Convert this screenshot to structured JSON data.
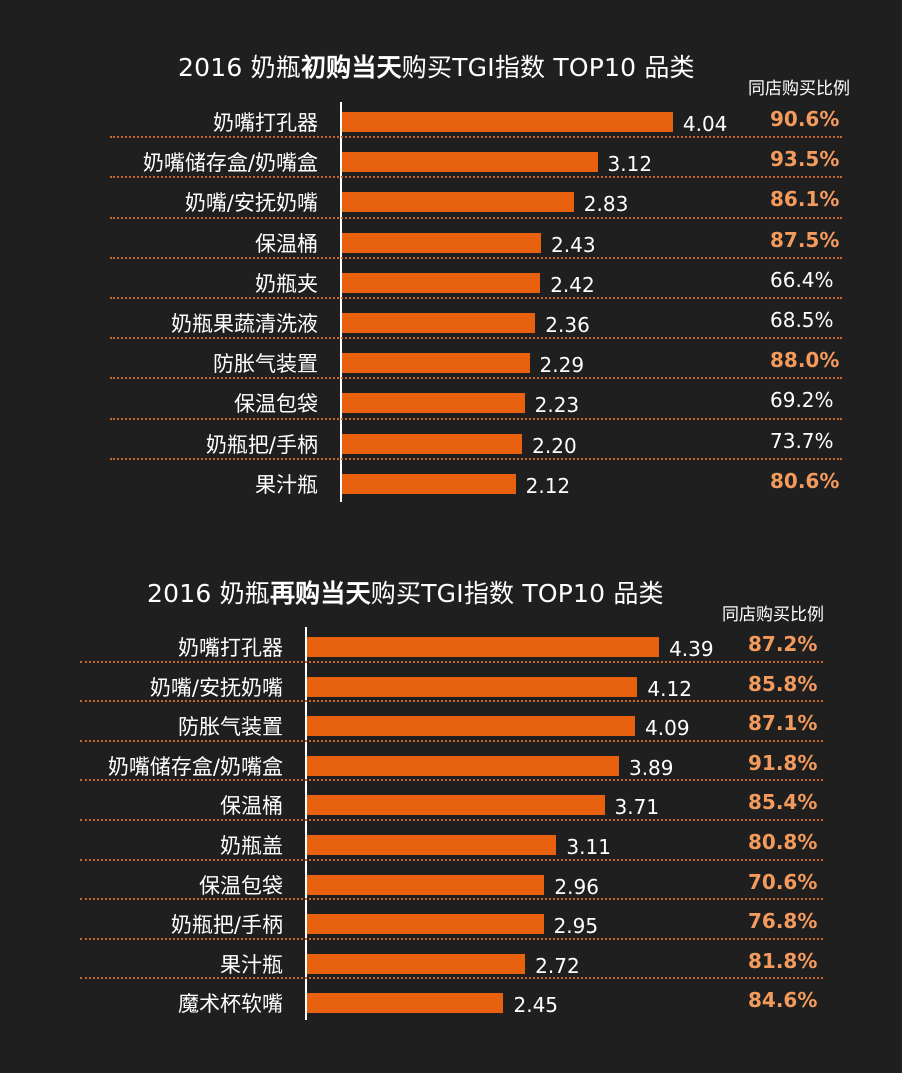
{
  "chart_data": [
    {
      "type": "bar",
      "title_parts": [
        "2016 奶瓶",
        "初购当天",
        "购买TGI指数 TOP10 品类"
      ],
      "share_header": "同店购买比例",
      "categories": [
        "奶嘴打孔器",
        "奶嘴储存盒/奶嘴盒",
        "奶嘴/安抚奶嘴",
        "保温桶",
        "奶瓶夹",
        "奶瓶果蔬清洗液",
        "防胀气装置",
        "保温包袋",
        "奶瓶把/手柄",
        "果汁瓶"
      ],
      "values": [
        4.04,
        3.12,
        2.83,
        2.43,
        2.42,
        2.36,
        2.29,
        2.23,
        2.2,
        2.12
      ],
      "value_labels": [
        "4.04",
        "3.12",
        "2.83",
        "2.43",
        "2.42",
        "2.36",
        "2.29",
        "2.23",
        "2.20",
        "2.12"
      ],
      "shares": [
        "90.6%",
        "93.5%",
        "86.1%",
        "87.5%",
        "66.4%",
        "68.5%",
        "88.0%",
        "69.2%",
        "73.7%",
        "80.6%"
      ],
      "share_highlight": [
        true,
        true,
        true,
        true,
        false,
        false,
        true,
        false,
        false,
        true
      ]
    },
    {
      "type": "bar",
      "title_parts": [
        "2016 奶瓶",
        "再购当天",
        "购买TGI指数 TOP10 品类"
      ],
      "share_header": "同店购买比例",
      "categories": [
        "奶嘴打孔器",
        "奶嘴/安抚奶嘴",
        "防胀气装置",
        "奶嘴储存盒/奶嘴盒",
        "保温桶",
        "奶瓶盖",
        "保温包袋",
        "奶瓶把/手柄",
        "果汁瓶",
        "魔术杯软嘴"
      ],
      "values": [
        4.39,
        4.12,
        4.09,
        3.89,
        3.71,
        3.11,
        2.96,
        2.95,
        2.72,
        2.45
      ],
      "value_labels": [
        "4.39",
        "4.12",
        "4.09",
        "3.89",
        "3.71",
        "3.11",
        "2.96",
        "2.95",
        "2.72",
        "2.45"
      ],
      "shares": [
        "87.2%",
        "85.8%",
        "87.1%",
        "91.8%",
        "85.4%",
        "80.8%",
        "70.6%",
        "76.8%",
        "81.8%",
        "84.6%"
      ],
      "share_highlight": [
        true,
        true,
        true,
        true,
        true,
        true,
        true,
        true,
        true,
        true
      ]
    }
  ]
}
